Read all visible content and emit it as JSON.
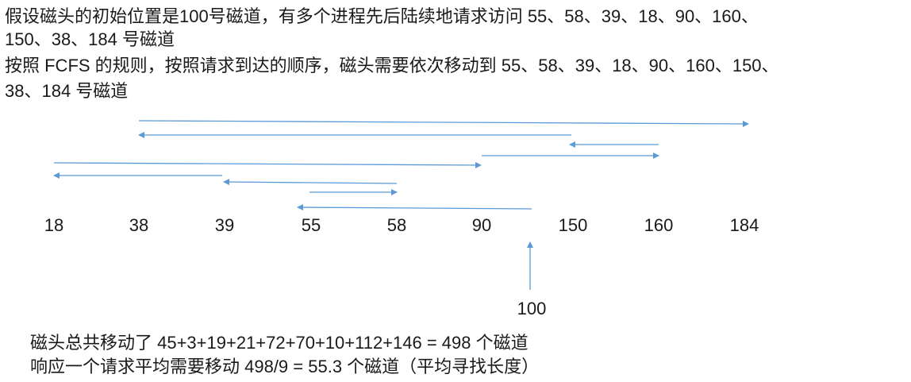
{
  "intro_lines": [
    "假设磁头的初始位置是100号磁道，有多个进程先后陆续地请求访问 55、58、39、18、90、160、",
    "150、38、184 号磁道"
  ],
  "rule_lines": [
    "按照 FCFS 的规则，按照请求到达的顺序，磁头需要依次移动到 55、58、39、18、90、160、150、",
    "38、184 号磁道"
  ],
  "track_labels": [
    "18",
    "38",
    "39",
    "55",
    "58",
    "90",
    "150",
    "160",
    "184"
  ],
  "start_label": "100",
  "summary_lines": [
    "磁头总共移动了  45+3+19+21+72+70+10+112+146 = 498  个磁道",
    "响应一个请求平均需要移动 498/9 = 55.3 个磁道（平均寻找长度）"
  ]
}
